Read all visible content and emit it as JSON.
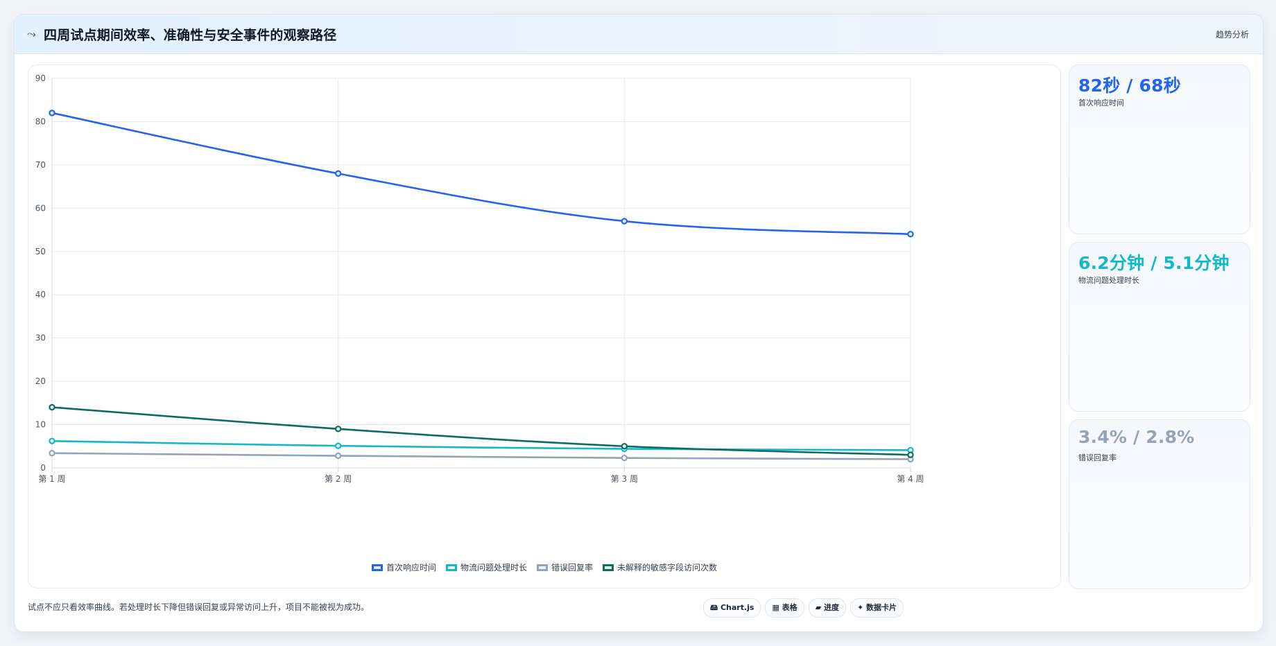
{
  "header": {
    "icon": "trend-icon",
    "icon_glyph": "⤳",
    "title": "四周试点期间效率、准确性与安全事件的观察路径",
    "tag": "趋势分析"
  },
  "chart_data": {
    "type": "line",
    "x": [
      "第 1 周",
      "第 2 周",
      "第 3 周",
      "第 4 周"
    ],
    "ylim": [
      0,
      90
    ],
    "yticks": [
      0,
      10,
      20,
      30,
      40,
      50,
      60,
      70,
      80,
      90
    ],
    "grid": true,
    "legend_position": "bottom",
    "series": [
      {
        "name": "首次响应时间",
        "values": [
          82,
          68,
          57,
          54
        ],
        "color": "#2563eb",
        "fill": "#e6eeff"
      },
      {
        "name": "物流问题处理时长",
        "values": [
          6.2,
          5.1,
          4.4,
          4.1
        ],
        "color": "#14b8c9",
        "fill": "#e3f7fa"
      },
      {
        "name": "错误回复率",
        "values": [
          3.4,
          2.8,
          2.3,
          2.0
        ],
        "color": "#94a3b8",
        "fill": "#f0f3f7"
      },
      {
        "name": "未解释的敏感字段访问次数",
        "values": [
          14,
          9,
          5,
          3
        ],
        "color": "#0f6b5e",
        "fill": "#e6f2ef"
      }
    ]
  },
  "stats": [
    {
      "value": "82秒 / 68秒",
      "label": "首次响应时间",
      "color": "#2563eb"
    },
    {
      "value": "6.2分钟 / 5.1分钟",
      "label": "物流问题处理时长",
      "color": "#14b8c9"
    },
    {
      "value": "3.4% / 2.8%",
      "label": "错误回复率",
      "color": "#94a3b8"
    }
  ],
  "footer": {
    "note": "试点不应只看效率曲线。若处理时长下降但错误回复或异常访问上升，项目不能被视为成功。",
    "chips": [
      "🖴 Chart.js",
      "▦ 表格",
      "▰ 进度",
      "✦ 数据卡片"
    ]
  }
}
